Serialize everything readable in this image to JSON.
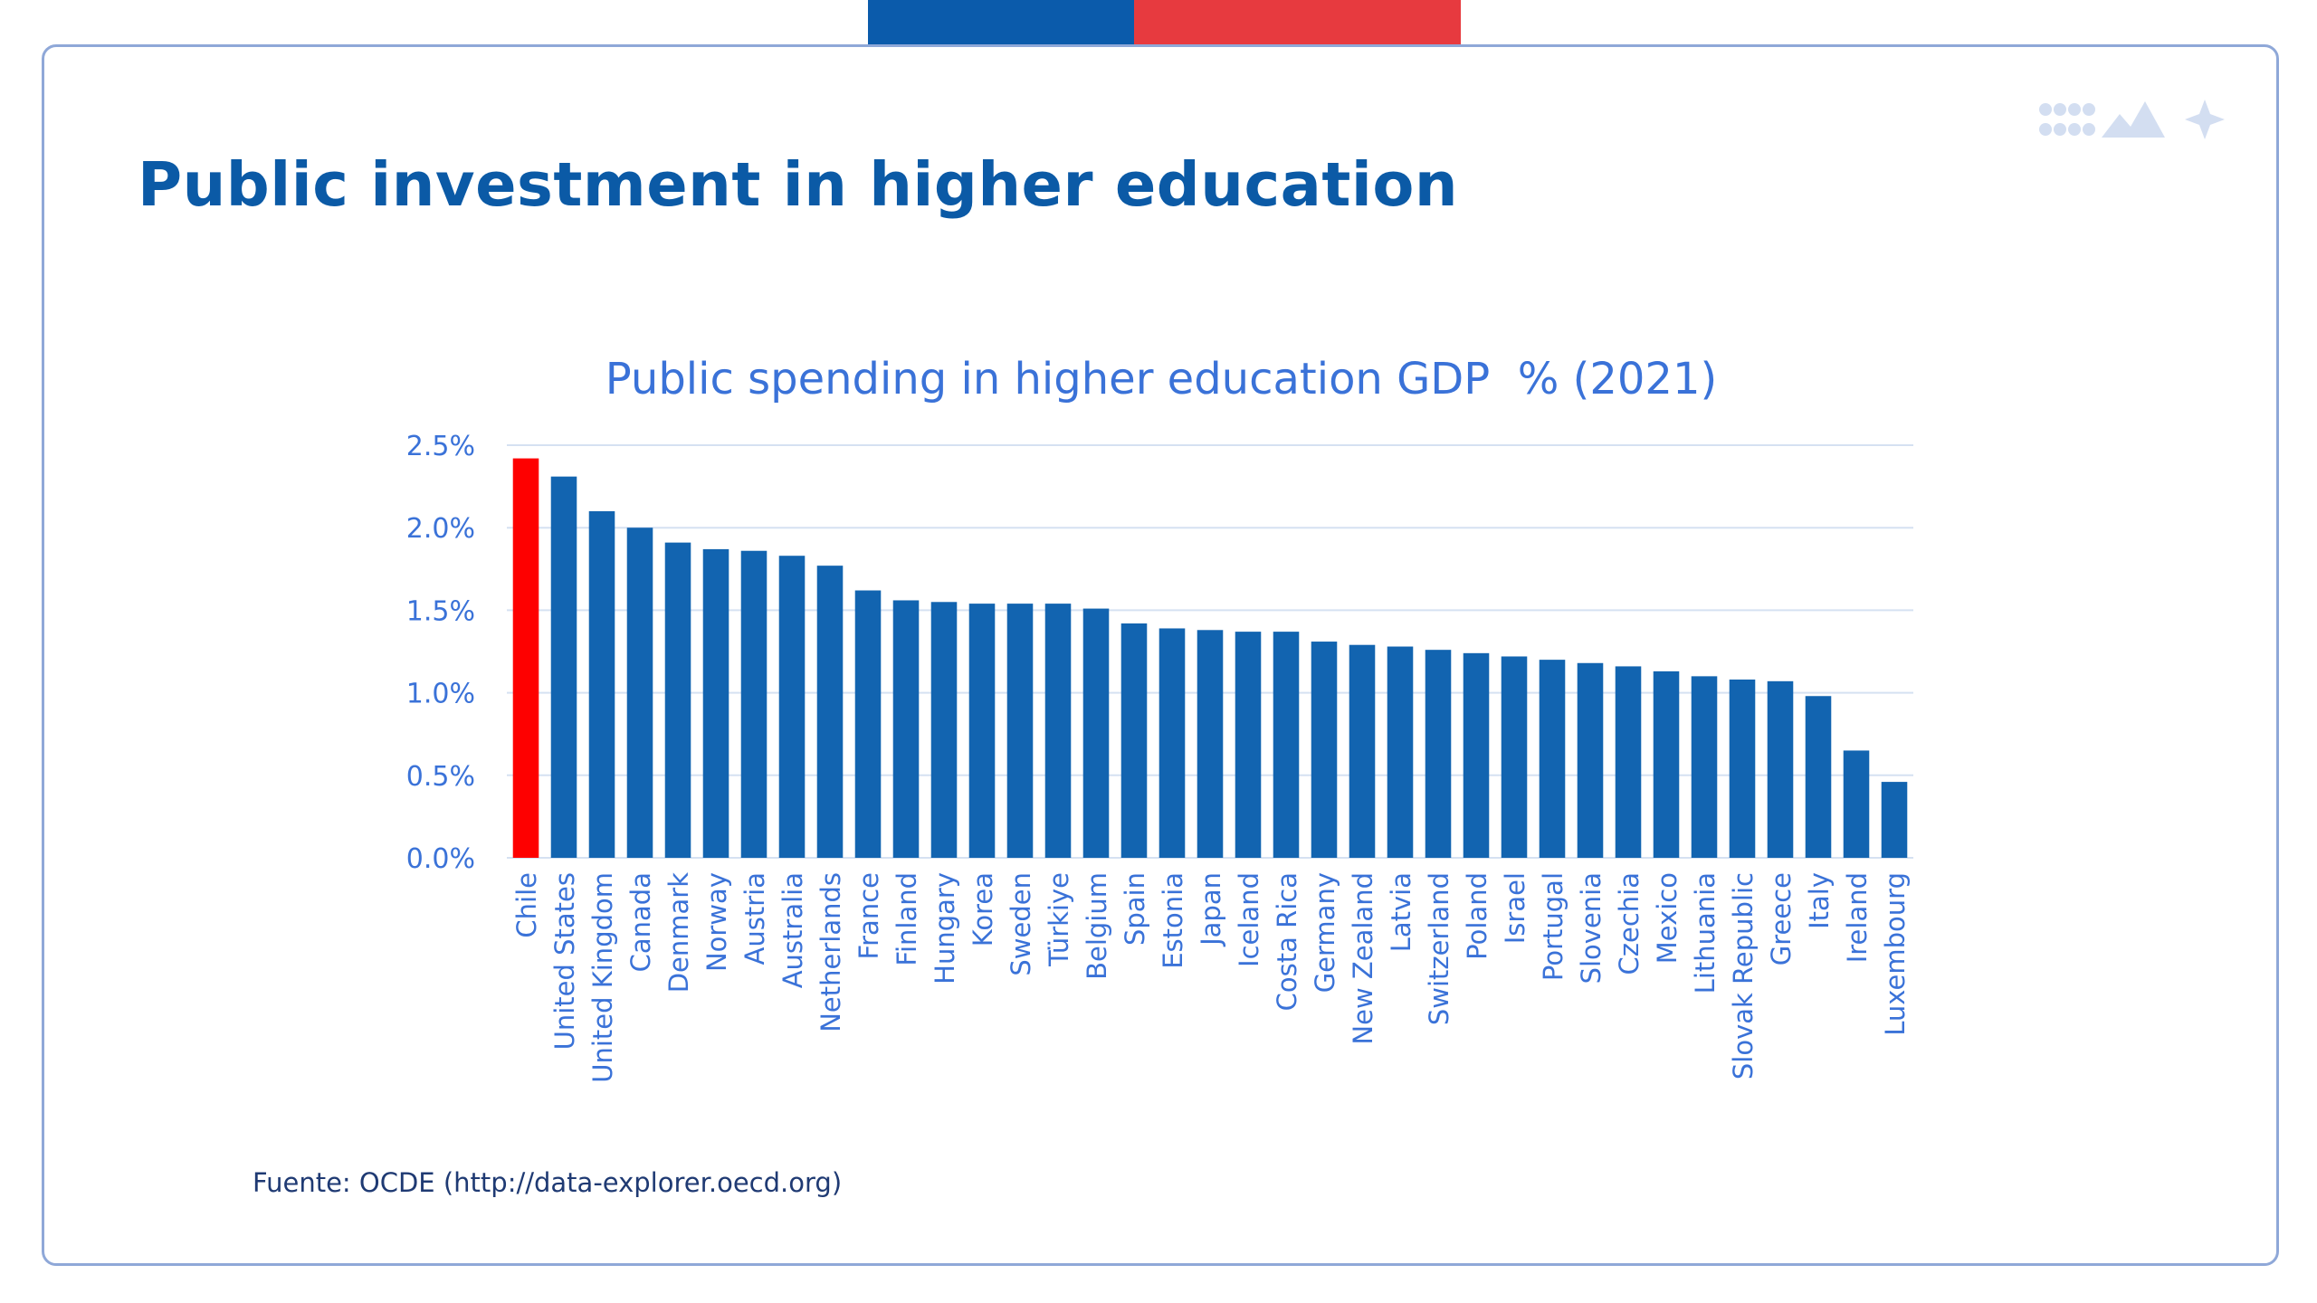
{
  "slide": {
    "title": "Public investment in higher education",
    "source": "Fuente: OCDE (http://data-explorer.oecd.org)"
  },
  "colors": {
    "title": "#0b5aa6",
    "bar": "#1264b0",
    "highlight_bar": "#fe0000",
    "chart_text": "#3a72d8",
    "gridline": "#d5e1f2",
    "band_blue": "#0b5bab",
    "band_red": "#e73a3f",
    "border": "#8fa8d8",
    "brand_mark": "#d3def1"
  },
  "icons": {
    "brand_mark": "brand-logo-icon"
  },
  "chart_data": {
    "type": "bar",
    "title": "Public spending in higher education GDP  % (2021)",
    "xlabel": "",
    "ylabel": "",
    "ylim": [
      0,
      0.025
    ],
    "yticks": [
      0,
      0.005,
      0.01,
      0.015,
      0.02,
      0.025
    ],
    "ytick_labels": [
      "0.0%",
      "0.5%",
      "1.0%",
      "1.5%",
      "2.0%",
      "2.5%"
    ],
    "grid": true,
    "legend": "none",
    "highlight_category": "Chile",
    "categories": [
      "Chile",
      "United States",
      "United Kingdom",
      "Canada",
      "Denmark",
      "Norway",
      "Austria",
      "Australia",
      "Netherlands",
      "France",
      "Finland",
      "Hungary",
      "Korea",
      "Sweden",
      "Türkiye",
      "Belgium",
      "Spain",
      "Estonia",
      "Japan",
      "Iceland",
      "Costa Rica",
      "Germany",
      "New Zealand",
      "Latvia",
      "Switzerland",
      "Poland",
      "Israel",
      "Portugal",
      "Slovenia",
      "Czechia",
      "Mexico",
      "Lithuania",
      "Slovak Republic",
      "Greece",
      "Italy",
      "Ireland",
      "Luxembourg"
    ],
    "values": [
      0.0242,
      0.0231,
      0.021,
      0.02,
      0.0191,
      0.0187,
      0.0186,
      0.0183,
      0.0177,
      0.0162,
      0.0156,
      0.0155,
      0.0154,
      0.0154,
      0.0154,
      0.0151,
      0.0142,
      0.0139,
      0.0138,
      0.0137,
      0.0137,
      0.0131,
      0.0129,
      0.0128,
      0.0126,
      0.0124,
      0.0122,
      0.012,
      0.0118,
      0.0116,
      0.0113,
      0.011,
      0.0108,
      0.0107,
      0.0098,
      0.0065,
      0.0046
    ]
  }
}
